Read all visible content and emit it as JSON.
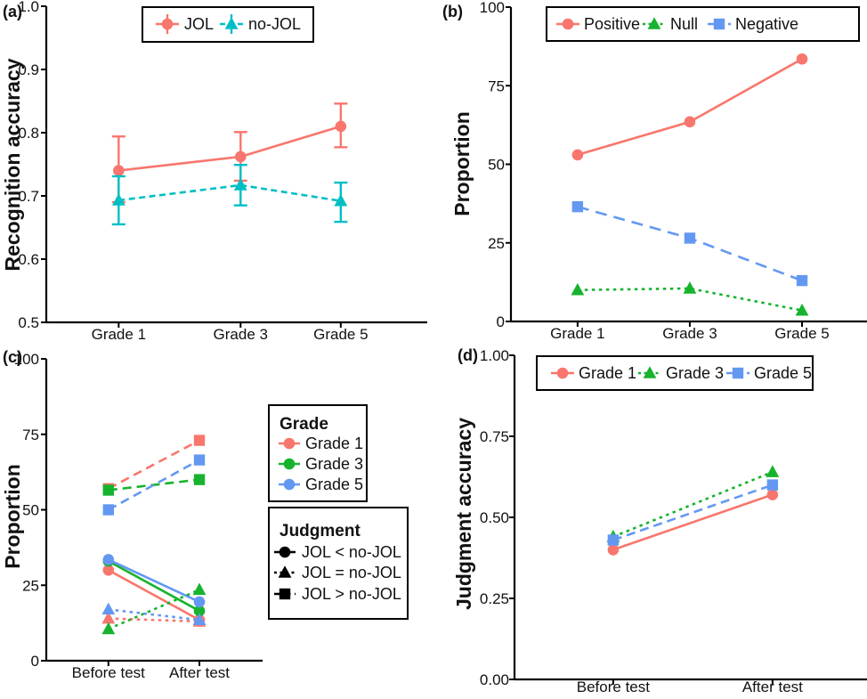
{
  "figure_title": "Four-panel line chart figure",
  "colors": {
    "grade1_red": "#F8766D",
    "grade3_green": "#17B32E",
    "grade5_blue": "#6398F2",
    "nojol_teal": "#00BFC4",
    "axis_black": "#000000",
    "text_dark": "#111111"
  },
  "chart_data": [
    {
      "id": "a",
      "tag": "(a)",
      "type": "line",
      "ylabel": "Recognition accuracy",
      "ylim": [
        0.5,
        1.0
      ],
      "ytick_values": [
        0.5,
        0.6,
        0.7,
        0.8,
        0.9,
        1.0
      ],
      "ytick_labels": [
        "0.5",
        "0.6",
        "0.7",
        "0.8",
        "0.9",
        "1.0"
      ],
      "categories": [
        "Grade 1",
        "Grade 3",
        "Grade 5"
      ],
      "grid": "off",
      "series": [
        {
          "name": "JOL",
          "color": "#F8766D",
          "marker": "circle",
          "line": "solid",
          "values": [
            0.74,
            0.762,
            0.81
          ],
          "error_low": [
            0.69,
            0.724,
            0.777
          ],
          "error_high": [
            0.794,
            0.801,
            0.846
          ]
        },
        {
          "name": "no-JOL",
          "color": "#00BFC4",
          "marker": "triangle",
          "line": "shortdash",
          "values": [
            0.693,
            0.717,
            0.692
          ],
          "error_low": [
            0.655,
            0.685,
            0.659
          ],
          "error_high": [
            0.731,
            0.749,
            0.721
          ]
        }
      ],
      "legend": {
        "position": "top-center-inside",
        "style": "errorbar",
        "entries": [
          {
            "label": "JOL",
            "series": 0
          },
          {
            "label": "no-JOL",
            "series": 1
          }
        ]
      }
    },
    {
      "id": "b",
      "tag": "(b)",
      "type": "line",
      "ylabel": "Proportion",
      "ylim": [
        0,
        100
      ],
      "ytick_values": [
        0,
        25,
        50,
        75,
        100
      ],
      "ytick_labels": [
        "0",
        "25",
        "50",
        "75",
        "100"
      ],
      "categories": [
        "Grade 1",
        "Grade 3",
        "Grade 5"
      ],
      "grid": "off",
      "series": [
        {
          "name": "Positive",
          "color": "#F8766D",
          "marker": "circle",
          "line": "solid",
          "values": [
            53,
            63.5,
            83.5
          ]
        },
        {
          "name": "Null",
          "color": "#17B32E",
          "marker": "triangle",
          "line": "dotted",
          "values": [
            10,
            10.5,
            3.5
          ]
        },
        {
          "name": "Negative",
          "color": "#6398F2",
          "marker": "square",
          "line": "longdash",
          "values": [
            36.5,
            26.5,
            13
          ]
        }
      ],
      "legend": {
        "position": "top-center-inside",
        "style": "line",
        "entries": [
          {
            "label": "Positive",
            "series": 0
          },
          {
            "label": "Null",
            "series": 1
          },
          {
            "label": "Negative",
            "series": 2
          }
        ]
      }
    },
    {
      "id": "c",
      "tag": "(c)",
      "type": "line",
      "ylabel": "Proportion",
      "ylim": [
        0,
        100
      ],
      "ytick_values": [
        0,
        25,
        50,
        75,
        100
      ],
      "ytick_labels": [
        "0",
        "25",
        "50",
        "75",
        "100"
      ],
      "categories": [
        "Before test",
        "After test"
      ],
      "grid": "off",
      "series": [
        {
          "name": "Grade 1 / JOL > no-JOL",
          "grade": "Grade 1",
          "judgment": "JOL > no-JOL",
          "color": "#F8766D",
          "marker": "square",
          "line": "dashed",
          "values": [
            57,
            73
          ]
        },
        {
          "name": "Grade 3 / JOL > no-JOL",
          "grade": "Grade 3",
          "judgment": "JOL > no-JOL",
          "color": "#17B32E",
          "marker": "square",
          "line": "dashed",
          "values": [
            56.5,
            60
          ]
        },
        {
          "name": "Grade 5 / JOL > no-JOL",
          "grade": "Grade 5",
          "judgment": "JOL > no-JOL",
          "color": "#6398F2",
          "marker": "square",
          "line": "dashed",
          "values": [
            50,
            66.5
          ]
        },
        {
          "name": "Grade 1 / JOL < no-JOL",
          "grade": "Grade 1",
          "judgment": "JOL < no-JOL",
          "color": "#F8766D",
          "marker": "circle",
          "line": "solid",
          "values": [
            30,
            13.5
          ]
        },
        {
          "name": "Grade 3 / JOL < no-JOL",
          "grade": "Grade 3",
          "judgment": "JOL < no-JOL",
          "color": "#17B32E",
          "marker": "circle",
          "line": "solid",
          "values": [
            33,
            16.5
          ]
        },
        {
          "name": "Grade 5 / JOL < no-JOL",
          "grade": "Grade 5",
          "judgment": "JOL < no-JOL",
          "color": "#6398F2",
          "marker": "circle",
          "line": "solid",
          "values": [
            33.5,
            19.5
          ]
        },
        {
          "name": "Grade 1 / JOL = no-JOL",
          "grade": "Grade 1",
          "judgment": "JOL = no-JOL",
          "color": "#F8766D",
          "marker": "triangle",
          "line": "dotted",
          "values": [
            14,
            13
          ]
        },
        {
          "name": "Grade 3 / JOL = no-JOL",
          "grade": "Grade 3",
          "judgment": "JOL = no-JOL",
          "color": "#17B32E",
          "marker": "triangle",
          "line": "dotted",
          "values": [
            10.5,
            23.5
          ]
        },
        {
          "name": "Grade 5 / JOL = no-JOL",
          "grade": "Grade 5",
          "judgment": "JOL = no-JOL",
          "color": "#6398F2",
          "marker": "triangle",
          "line": "dotted",
          "values": [
            17,
            13.5
          ]
        }
      ],
      "legend_boxes": [
        {
          "title": "Grade",
          "entries": [
            {
              "label": "Grade 1",
              "color": "#F8766D",
              "marker": "circle",
              "line": "solid"
            },
            {
              "label": "Grade 3",
              "color": "#17B32E",
              "marker": "circle",
              "line": "solid"
            },
            {
              "label": "Grade 5",
              "color": "#6398F2",
              "marker": "circle",
              "line": "solid"
            }
          ]
        },
        {
          "title": "Judgment",
          "entries": [
            {
              "label": "JOL < no-JOL",
              "color": "#000000",
              "marker": "circle",
              "line": "solid"
            },
            {
              "label": "JOL = no-JOL",
              "color": "#000000",
              "marker": "triangle",
              "line": "dotted"
            },
            {
              "label": "JOL > no-JOL",
              "color": "#000000",
              "marker": "square",
              "line": "dashed"
            }
          ]
        }
      ]
    },
    {
      "id": "d",
      "tag": "(d)",
      "type": "line",
      "ylabel": "Judgment accuracy",
      "ylim": [
        0,
        1
      ],
      "ytick_values": [
        0,
        0.25,
        0.5,
        0.75,
        1
      ],
      "ytick_labels": [
        "0.00",
        "0.25",
        "0.50",
        "0.75",
        "1.00"
      ],
      "categories": [
        "Before test",
        "After test"
      ],
      "grid": "off",
      "series": [
        {
          "name": "Grade 1",
          "color": "#F8766D",
          "marker": "circle",
          "line": "solid",
          "values": [
            0.4,
            0.57
          ]
        },
        {
          "name": "Grade 3",
          "color": "#17B32E",
          "marker": "triangle",
          "line": "dotted",
          "values": [
            0.44,
            0.64
          ]
        },
        {
          "name": "Grade 5",
          "color": "#6398F2",
          "marker": "square",
          "line": "dashed",
          "values": [
            0.43,
            0.6
          ]
        }
      ],
      "legend": {
        "position": "top-center-inside",
        "style": "line",
        "entries": [
          {
            "label": "Grade 1",
            "series": 0
          },
          {
            "label": "Grade 3",
            "series": 1
          },
          {
            "label": "Grade 5",
            "series": 2
          }
        ]
      }
    }
  ]
}
